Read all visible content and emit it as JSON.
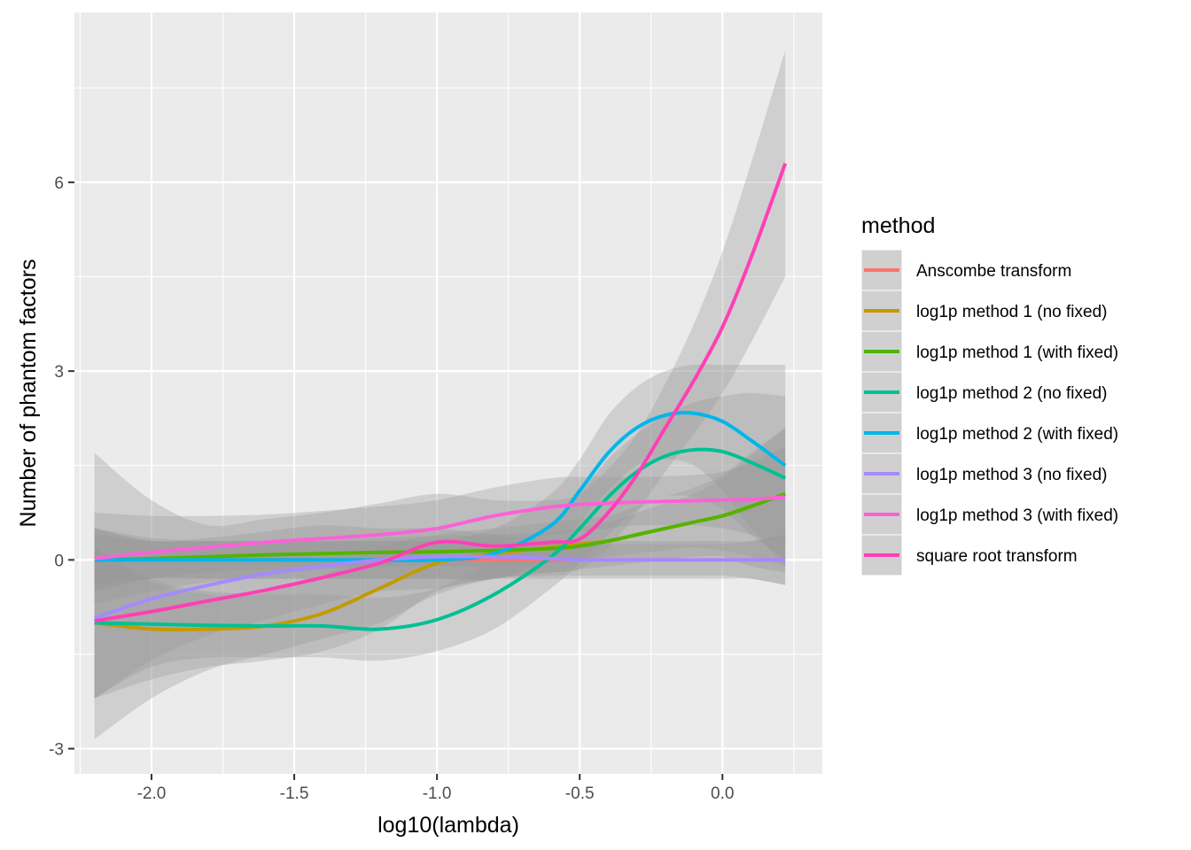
{
  "chart_data": {
    "type": "line",
    "xlabel": "log10(lambda)",
    "ylabel": "Number of phantom factors",
    "xlim": [
      -2.27,
      0.35
    ],
    "ylim": [
      -3.4,
      8.7
    ],
    "x_ticks": [
      -2.0,
      -1.5,
      -1.0,
      -0.5,
      0.0
    ],
    "x_tick_labels": [
      "-2.0",
      "-1.5",
      "-1.0",
      "-0.5",
      "0.0"
    ],
    "y_ticks": [
      -3,
      0,
      3,
      6
    ],
    "y_tick_labels": [
      "-3",
      "0",
      "3",
      "6"
    ],
    "grid": true,
    "legend": {
      "title": "method",
      "position": "right"
    },
    "x": [
      -2.2,
      -2.0,
      -1.8,
      -1.6,
      -1.4,
      -1.2,
      -1.0,
      -0.8,
      -0.6,
      -0.5,
      -0.4,
      -0.3,
      -0.2,
      -0.1,
      0.0,
      0.1,
      0.22
    ],
    "series": [
      {
        "name": "Anscombe transform",
        "color": "#F8766D",
        "values": [
          0.0,
          0.0,
          0.0,
          0.0,
          0.0,
          0.0,
          0.0,
          0.0,
          0.0,
          0.0,
          0.0,
          0.0,
          0.0,
          0.0,
          0.0,
          0.0,
          0.0
        ],
        "lower": [
          -0.4,
          -0.3,
          -0.3,
          -0.3,
          -0.3,
          -0.3,
          -0.3,
          -0.3,
          -0.3,
          -0.3,
          -0.3,
          -0.3,
          -0.3,
          -0.3,
          -0.3,
          -0.3,
          -0.4
        ],
        "upper": [
          0.4,
          0.3,
          0.3,
          0.3,
          0.3,
          0.3,
          0.3,
          0.3,
          0.3,
          0.3,
          0.3,
          0.3,
          0.3,
          0.3,
          0.3,
          0.3,
          0.4
        ]
      },
      {
        "name": "log1p method 1 (no fixed)",
        "color": "#C49A00",
        "values": [
          -1.0,
          -1.1,
          -1.1,
          -1.05,
          -0.85,
          -0.45,
          -0.05,
          0.1,
          0.2,
          0.25,
          0.3,
          0.4,
          0.5,
          0.6,
          0.7,
          0.85,
          1.05
        ],
        "lower": [
          -2.2,
          -1.9,
          -1.7,
          -1.6,
          -1.45,
          -1.1,
          -0.5,
          -0.3,
          -0.2,
          -0.15,
          -0.1,
          -0.05,
          0.0,
          0.05,
          0.05,
          -0.1,
          -0.2
        ],
        "upper": [
          0.2,
          -0.3,
          -0.5,
          -0.5,
          -0.25,
          0.2,
          0.4,
          0.5,
          0.6,
          0.65,
          0.7,
          0.85,
          1.0,
          1.15,
          1.35,
          1.7,
          2.1
        ]
      },
      {
        "name": "log1p method 1 (with fixed)",
        "color": "#53B400",
        "values": [
          0.0,
          0.02,
          0.05,
          0.08,
          0.1,
          0.12,
          0.13,
          0.15,
          0.18,
          0.22,
          0.3,
          0.4,
          0.5,
          0.6,
          0.7,
          0.85,
          1.05
        ],
        "lower": [
          -0.5,
          -0.3,
          -0.2,
          -0.15,
          -0.1,
          -0.1,
          -0.1,
          -0.1,
          -0.05,
          0.0,
          0.05,
          0.1,
          0.15,
          0.2,
          0.15,
          0.05,
          -0.1
        ],
        "upper": [
          0.5,
          0.35,
          0.3,
          0.3,
          0.3,
          0.35,
          0.38,
          0.4,
          0.45,
          0.5,
          0.6,
          0.75,
          0.9,
          1.05,
          1.3,
          1.65,
          2.1
        ]
      },
      {
        "name": "log1p method 2 (no fixed)",
        "color": "#00C094",
        "values": [
          -1.0,
          -1.02,
          -1.04,
          -1.05,
          -1.05,
          -1.1,
          -0.95,
          -0.55,
          0.05,
          0.5,
          1.0,
          1.4,
          1.65,
          1.75,
          1.72,
          1.55,
          1.3
        ],
        "lower": [
          -2.2,
          -1.7,
          -1.55,
          -1.55,
          -1.55,
          -1.6,
          -1.45,
          -1.1,
          -0.45,
          -0.05,
          0.4,
          0.8,
          1.0,
          1.0,
          0.8,
          0.4,
          0.0
        ],
        "upper": [
          0.2,
          -0.35,
          -0.55,
          -0.55,
          -0.55,
          -0.6,
          -0.45,
          0.0,
          0.55,
          1.05,
          1.6,
          2.0,
          2.3,
          2.5,
          2.6,
          2.65,
          2.6
        ]
      },
      {
        "name": "log1p method 2 (with fixed)",
        "color": "#00B6EB",
        "values": [
          0.0,
          0.0,
          0.0,
          0.0,
          0.0,
          0.0,
          0.0,
          0.1,
          0.55,
          1.1,
          1.7,
          2.1,
          2.3,
          2.33,
          2.2,
          1.9,
          1.5
        ],
        "lower": [
          -0.5,
          -0.3,
          -0.3,
          -0.3,
          -0.3,
          -0.3,
          -0.3,
          -0.3,
          0.05,
          0.6,
          1.1,
          1.5,
          1.6,
          1.5,
          1.1,
          0.5,
          -0.1
        ],
        "upper": [
          0.5,
          0.3,
          0.3,
          0.3,
          0.3,
          0.3,
          0.3,
          0.5,
          1.05,
          1.6,
          2.3,
          2.75,
          3.0,
          3.1,
          3.1,
          3.1,
          3.1
        ]
      },
      {
        "name": "log1p method 3 (no fixed)",
        "color": "#A58AFF",
        "values": [
          -0.92,
          -0.62,
          -0.4,
          -0.22,
          -0.1,
          0.0,
          0.05,
          0.05,
          0.02,
          0.0,
          0.0,
          0.0,
          0.0,
          0.0,
          0.0,
          0.0,
          0.0
        ],
        "lower": [
          -2.2,
          -1.6,
          -1.2,
          -0.95,
          -0.7,
          -0.5,
          -0.45,
          -0.3,
          -0.25,
          -0.25,
          -0.25,
          -0.25,
          -0.25,
          -0.25,
          -0.25,
          -0.3,
          -0.4
        ],
        "upper": [
          0.5,
          0.3,
          0.35,
          0.45,
          0.55,
          0.5,
          0.5,
          0.4,
          0.3,
          0.25,
          0.25,
          0.25,
          0.25,
          0.25,
          0.25,
          0.3,
          0.4
        ]
      },
      {
        "name": "log1p method 3 (with fixed)",
        "color": "#FB61D7",
        "values": [
          0.02,
          0.12,
          0.2,
          0.28,
          0.34,
          0.4,
          0.5,
          0.7,
          0.84,
          0.88,
          0.9,
          0.92,
          0.93,
          0.94,
          0.95,
          0.96,
          1.0
        ],
        "lower": [
          -0.7,
          -0.5,
          -0.35,
          -0.25,
          -0.15,
          -0.1,
          0.05,
          0.25,
          0.4,
          0.45,
          0.5,
          0.55,
          0.55,
          0.55,
          0.5,
          0.4,
          0.25
        ],
        "upper": [
          0.75,
          0.7,
          0.7,
          0.72,
          0.78,
          0.85,
          0.95,
          1.15,
          1.3,
          1.32,
          1.32,
          1.32,
          1.33,
          1.35,
          1.4,
          1.55,
          1.8
        ]
      },
      {
        "name": "square root transform",
        "color": "#FF3FB6",
        "values": [
          -0.97,
          -0.82,
          -0.65,
          -0.48,
          -0.28,
          -0.05,
          0.28,
          0.22,
          0.28,
          0.33,
          0.75,
          1.35,
          2.1,
          2.85,
          3.7,
          4.8,
          6.3
        ],
        "lower": [
          -2.85,
          -2.2,
          -1.75,
          -1.5,
          -1.25,
          -1.0,
          -0.55,
          -0.3,
          -0.2,
          -0.15,
          0.2,
          0.75,
          1.4,
          2.0,
          2.65,
          3.45,
          4.5
        ],
        "upper": [
          1.7,
          0.95,
          0.55,
          0.65,
          0.75,
          0.9,
          1.05,
          0.95,
          0.95,
          1.05,
          1.45,
          2.0,
          2.8,
          3.75,
          4.9,
          6.3,
          8.1
        ]
      }
    ]
  }
}
